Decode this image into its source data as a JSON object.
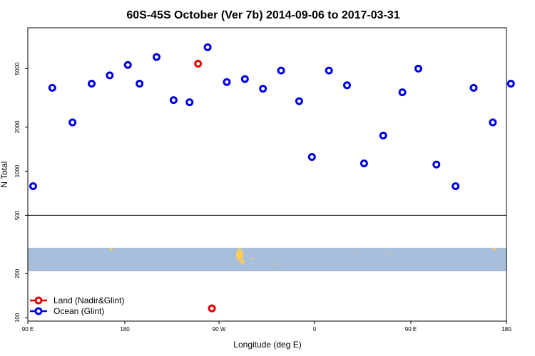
{
  "chart_data": {
    "type": "scatter",
    "title": "60S-45S October (Ver 7b)   2014-09-06 to 2017-03-31",
    "xlabel": "Longitude (deg E)",
    "ylabel": "N Total",
    "y_scale": "log",
    "ylim": [
      95,
      9500
    ],
    "x_ticks": [
      "90 E",
      "180",
      "90 W",
      "0",
      "90 E",
      "180"
    ],
    "y_ticks": [
      {
        "value": 100,
        "label": "100"
      },
      {
        "value": 200,
        "label": "200"
      },
      {
        "value": 500,
        "label": "500"
      },
      {
        "value": 1000,
        "label": "1000"
      },
      {
        "value": 2000,
        "label": "2000"
      },
      {
        "value": 5000,
        "label": "5000"
      }
    ],
    "divider_value": 500,
    "colors": {
      "ocean": "#0000e6",
      "land": "#e60000",
      "map_ocean": "#a8bfdc",
      "map_land": "#f7cd5b"
    },
    "series": [
      {
        "name": "Land (Nadir&Glint)",
        "color": "#e60000",
        "x": [
          -110,
          -97
        ],
        "y": [
          5400,
          116
        ]
      },
      {
        "name": "Ocean (Glint)",
        "color": "#0000e6",
        "x": [
          95,
          113,
          132,
          150,
          167,
          184,
          -165,
          -149,
          -133,
          -118,
          -101,
          -83,
          -66,
          -49,
          -32,
          -15,
          -3,
          13,
          30,
          46,
          64,
          82,
          97,
          114,
          132,
          149,
          167,
          184
        ],
        "y": [
          790,
          3700,
          2150,
          3950,
          4500,
          5300,
          3950,
          6000,
          3050,
          2950,
          7000,
          4050,
          4250,
          3650,
          4850,
          3000,
          1250,
          4850,
          3850,
          1130,
          1750,
          3450,
          5000,
          1110,
          790,
          3700,
          2150,
          3950
        ]
      }
    ],
    "legend": {
      "position": "bottom-left",
      "entries": [
        "Land (Nadir&Glint)",
        "Ocean (Glint)"
      ]
    }
  }
}
